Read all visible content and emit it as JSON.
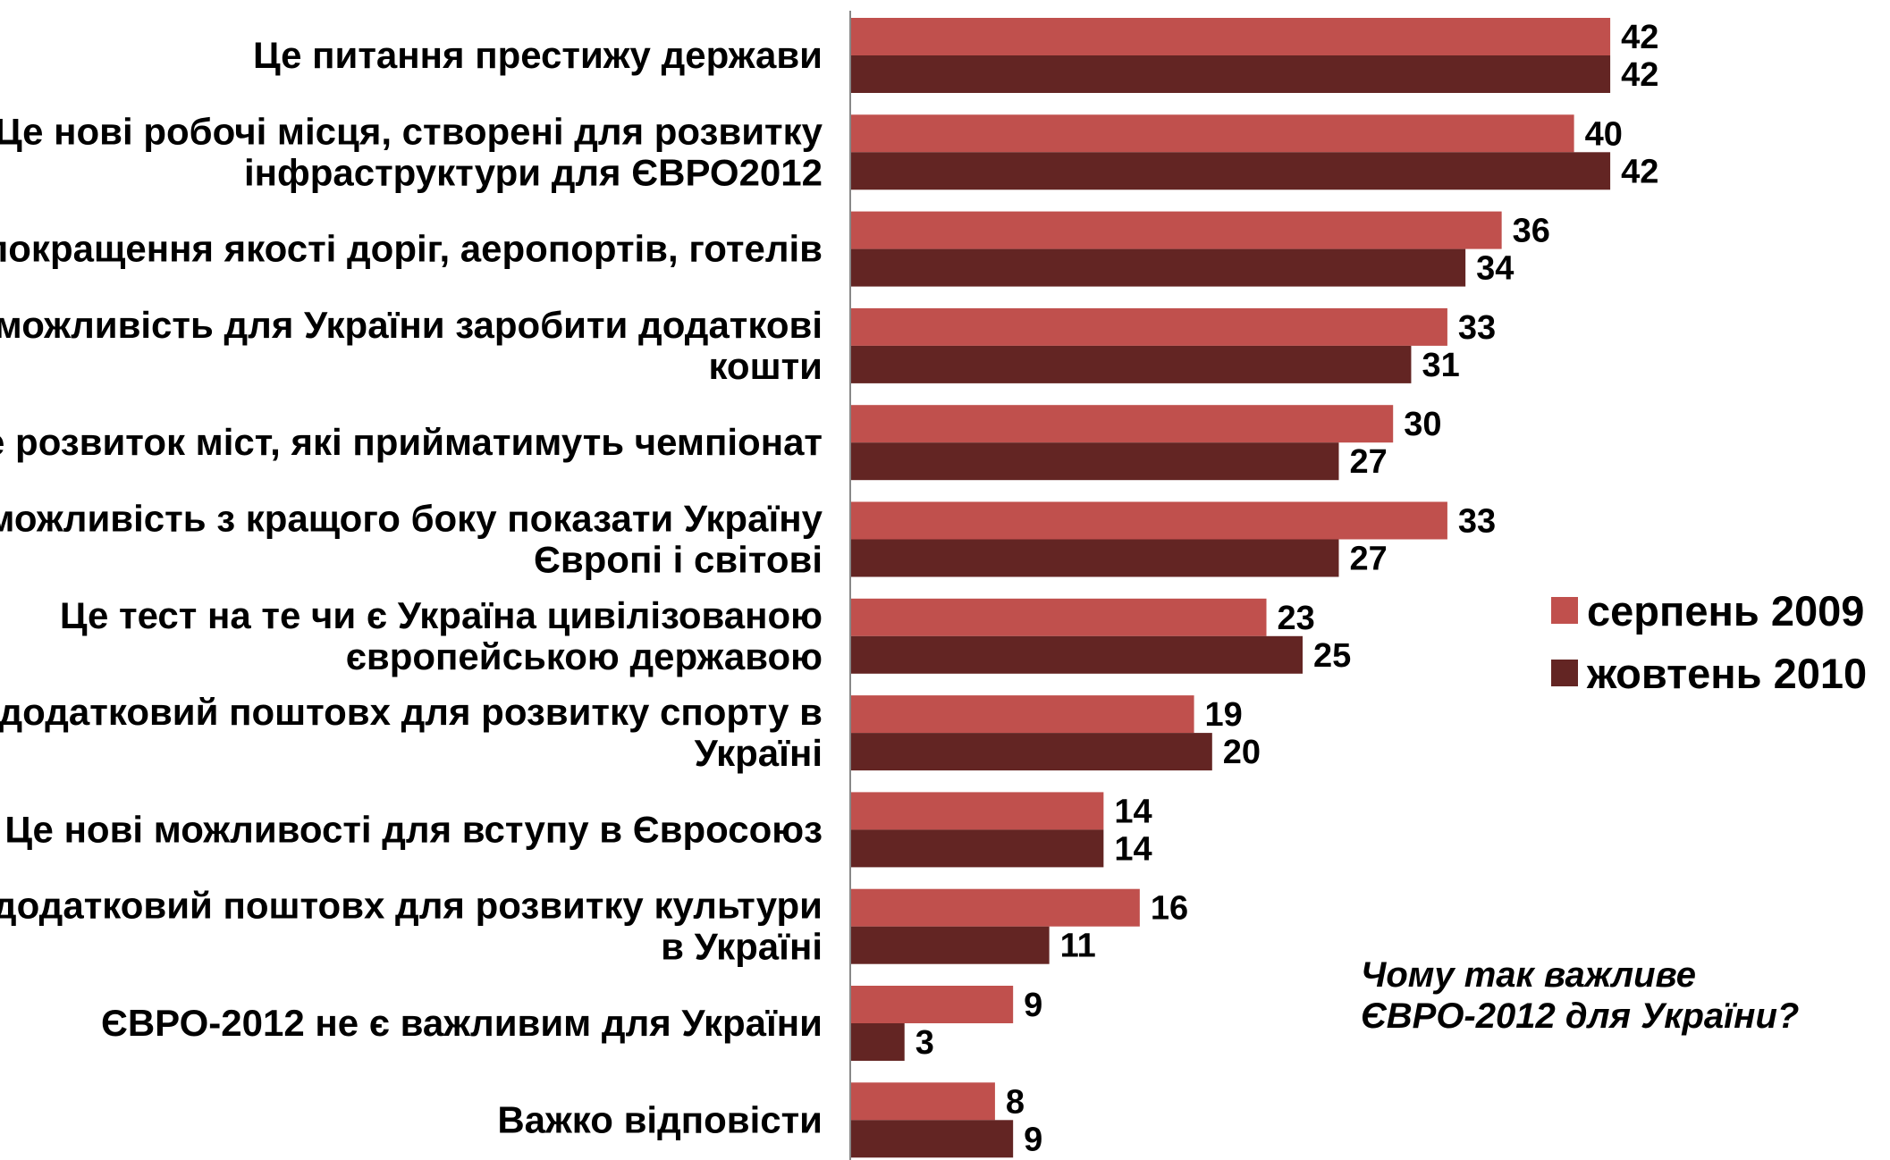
{
  "chart_data": {
    "type": "bar",
    "orientation": "horizontal",
    "categories": [
      [
        "Це питання престижу держави"
      ],
      [
        "Це нові робочі місця, створені для розвитку",
        "інфраструктури для ЄВРО2012"
      ],
      [
        "Це покращення якості доріг, аеропортів, готелів"
      ],
      [
        "Це можливість для України заробити додаткові",
        "кошти"
      ],
      [
        "Це розвиток міст, які прийматимуть чемпіонат"
      ],
      [
        "Це можливість з кращого боку показати Україну",
        "Європі і світові"
      ],
      [
        "Це тест на те чи є Україна цивілізованою",
        "європейською державою"
      ],
      [
        "Це додатковий поштовх для розвитку спорту в",
        "Україні"
      ],
      [
        "Це нові можливості для вступу в Євросоюз"
      ],
      [
        "Це додатковий поштовх для розвитку культури",
        "в Україні"
      ],
      [
        "ЄВРО-2012 не є важливим для України"
      ],
      [
        "Важко відповісти"
      ]
    ],
    "series": [
      {
        "name": "серпень 2009",
        "color": "#C0504D",
        "values": [
          42,
          40,
          36,
          33,
          30,
          33,
          23,
          19,
          14,
          16,
          9,
          8
        ]
      },
      {
        "name": "жовтень 2010",
        "color": "#632523",
        "values": [
          42,
          42,
          34,
          31,
          27,
          27,
          25,
          20,
          14,
          11,
          3,
          9
        ]
      }
    ],
    "xlim": [
      0,
      45
    ],
    "grid": false,
    "legend_position": "right"
  },
  "question": [
    "Чому так важливе",
    "ЄВРО-2012 для України?"
  ]
}
